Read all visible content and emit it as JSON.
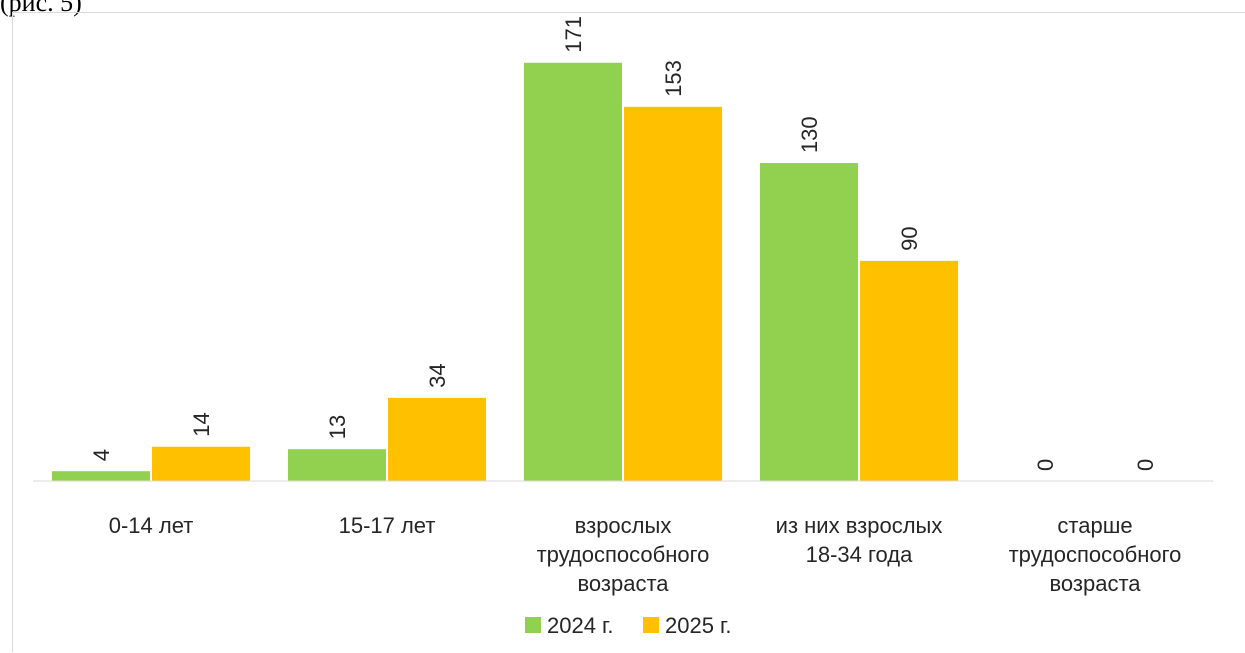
{
  "header_fragment": "(рис. 5)",
  "chart_data": {
    "type": "bar",
    "categories": [
      [
        "0-14 лет"
      ],
      [
        "15-17 лет"
      ],
      [
        "взрослых",
        "трудоспособного",
        "возраста"
      ],
      [
        "из них взрослых",
        "18-34 года"
      ],
      [
        "старше",
        "трудоспособного",
        "возраста"
      ]
    ],
    "series": [
      {
        "name": "2024 г.",
        "color": "#92d050",
        "values": [
          4,
          13,
          171,
          130,
          0
        ]
      },
      {
        "name": "2025 г.",
        "color": "#ffc000",
        "values": [
          14,
          34,
          153,
          90,
          0
        ]
      }
    ],
    "ylim": [
      0,
      175
    ],
    "grid": false,
    "legend": "bottom",
    "data_labels": "rotated"
  }
}
